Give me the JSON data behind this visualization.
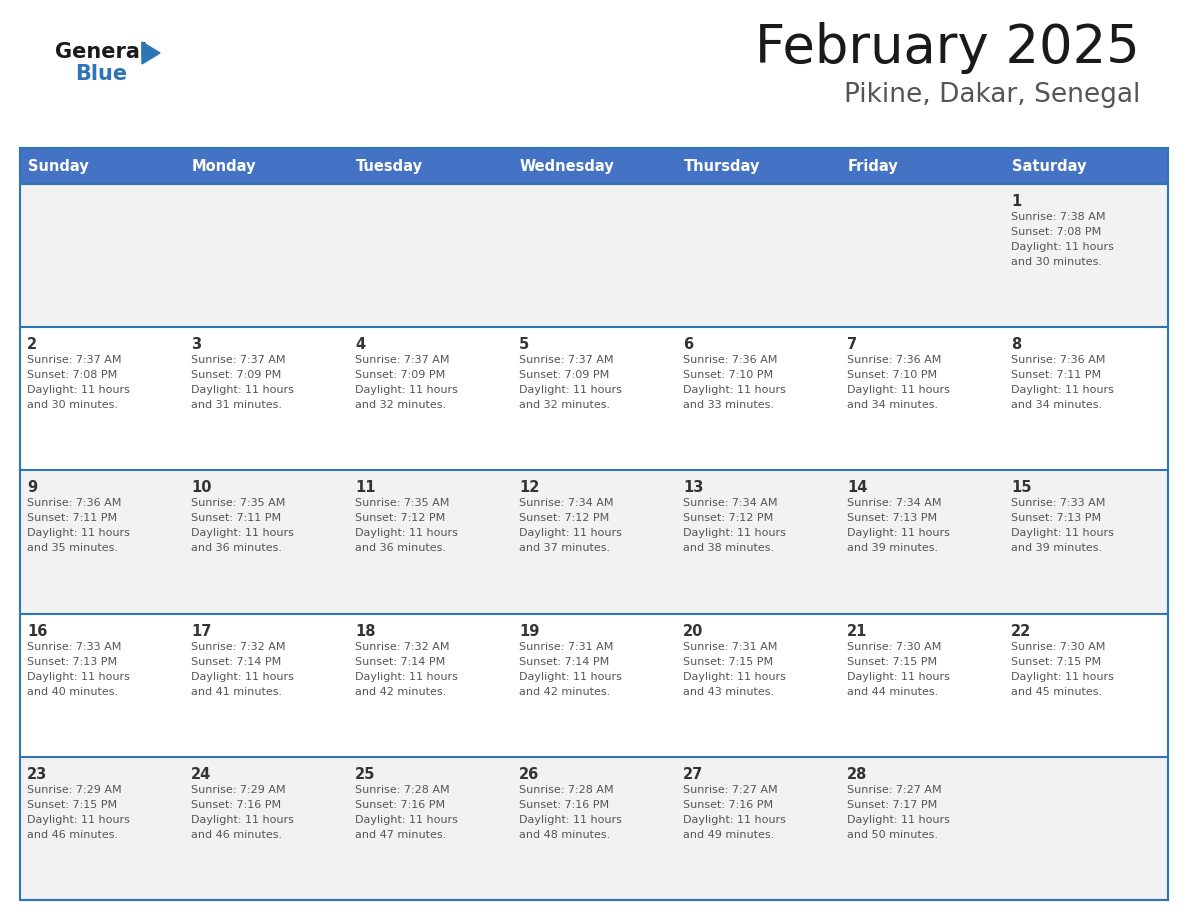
{
  "title": "February 2025",
  "subtitle": "Pikine, Dakar, Senegal",
  "header_bg": "#4472C4",
  "header_text_color": "#FFFFFF",
  "cell_bg_light": "#F2F2F2",
  "cell_bg_white": "#FFFFFF",
  "day_headers": [
    "Sunday",
    "Monday",
    "Tuesday",
    "Wednesday",
    "Thursday",
    "Friday",
    "Saturday"
  ],
  "header_line_color": "#2E75B6",
  "text_color": "#555555",
  "day_num_color": "#333333",
  "logo_general_color": "#1a1a1a",
  "logo_blue_color": "#2E75B6",
  "calendar_data": [
    [
      null,
      null,
      null,
      null,
      null,
      null,
      {
        "day": 1,
        "sunrise": "7:38 AM",
        "sunset": "7:08 PM",
        "daylight": "11 hours and 30 minutes."
      }
    ],
    [
      {
        "day": 2,
        "sunrise": "7:37 AM",
        "sunset": "7:08 PM",
        "daylight": "11 hours and 30 minutes."
      },
      {
        "day": 3,
        "sunrise": "7:37 AM",
        "sunset": "7:09 PM",
        "daylight": "11 hours and 31 minutes."
      },
      {
        "day": 4,
        "sunrise": "7:37 AM",
        "sunset": "7:09 PM",
        "daylight": "11 hours and 32 minutes."
      },
      {
        "day": 5,
        "sunrise": "7:37 AM",
        "sunset": "7:09 PM",
        "daylight": "11 hours and 32 minutes."
      },
      {
        "day": 6,
        "sunrise": "7:36 AM",
        "sunset": "7:10 PM",
        "daylight": "11 hours and 33 minutes."
      },
      {
        "day": 7,
        "sunrise": "7:36 AM",
        "sunset": "7:10 PM",
        "daylight": "11 hours and 34 minutes."
      },
      {
        "day": 8,
        "sunrise": "7:36 AM",
        "sunset": "7:11 PM",
        "daylight": "11 hours and 34 minutes."
      }
    ],
    [
      {
        "day": 9,
        "sunrise": "7:36 AM",
        "sunset": "7:11 PM",
        "daylight": "11 hours and 35 minutes."
      },
      {
        "day": 10,
        "sunrise": "7:35 AM",
        "sunset": "7:11 PM",
        "daylight": "11 hours and 36 minutes."
      },
      {
        "day": 11,
        "sunrise": "7:35 AM",
        "sunset": "7:12 PM",
        "daylight": "11 hours and 36 minutes."
      },
      {
        "day": 12,
        "sunrise": "7:34 AM",
        "sunset": "7:12 PM",
        "daylight": "11 hours and 37 minutes."
      },
      {
        "day": 13,
        "sunrise": "7:34 AM",
        "sunset": "7:12 PM",
        "daylight": "11 hours and 38 minutes."
      },
      {
        "day": 14,
        "sunrise": "7:34 AM",
        "sunset": "7:13 PM",
        "daylight": "11 hours and 39 minutes."
      },
      {
        "day": 15,
        "sunrise": "7:33 AM",
        "sunset": "7:13 PM",
        "daylight": "11 hours and 39 minutes."
      }
    ],
    [
      {
        "day": 16,
        "sunrise": "7:33 AM",
        "sunset": "7:13 PM",
        "daylight": "11 hours and 40 minutes."
      },
      {
        "day": 17,
        "sunrise": "7:32 AM",
        "sunset": "7:14 PM",
        "daylight": "11 hours and 41 minutes."
      },
      {
        "day": 18,
        "sunrise": "7:32 AM",
        "sunset": "7:14 PM",
        "daylight": "11 hours and 42 minutes."
      },
      {
        "day": 19,
        "sunrise": "7:31 AM",
        "sunset": "7:14 PM",
        "daylight": "11 hours and 42 minutes."
      },
      {
        "day": 20,
        "sunrise": "7:31 AM",
        "sunset": "7:15 PM",
        "daylight": "11 hours and 43 minutes."
      },
      {
        "day": 21,
        "sunrise": "7:30 AM",
        "sunset": "7:15 PM",
        "daylight": "11 hours and 44 minutes."
      },
      {
        "day": 22,
        "sunrise": "7:30 AM",
        "sunset": "7:15 PM",
        "daylight": "11 hours and 45 minutes."
      }
    ],
    [
      {
        "day": 23,
        "sunrise": "7:29 AM",
        "sunset": "7:15 PM",
        "daylight": "11 hours and 46 minutes."
      },
      {
        "day": 24,
        "sunrise": "7:29 AM",
        "sunset": "7:16 PM",
        "daylight": "11 hours and 46 minutes."
      },
      {
        "day": 25,
        "sunrise": "7:28 AM",
        "sunset": "7:16 PM",
        "daylight": "11 hours and 47 minutes."
      },
      {
        "day": 26,
        "sunrise": "7:28 AM",
        "sunset": "7:16 PM",
        "daylight": "11 hours and 48 minutes."
      },
      {
        "day": 27,
        "sunrise": "7:27 AM",
        "sunset": "7:16 PM",
        "daylight": "11 hours and 49 minutes."
      },
      {
        "day": 28,
        "sunrise": "7:27 AM",
        "sunset": "7:17 PM",
        "daylight": "11 hours and 50 minutes."
      },
      null
    ]
  ]
}
